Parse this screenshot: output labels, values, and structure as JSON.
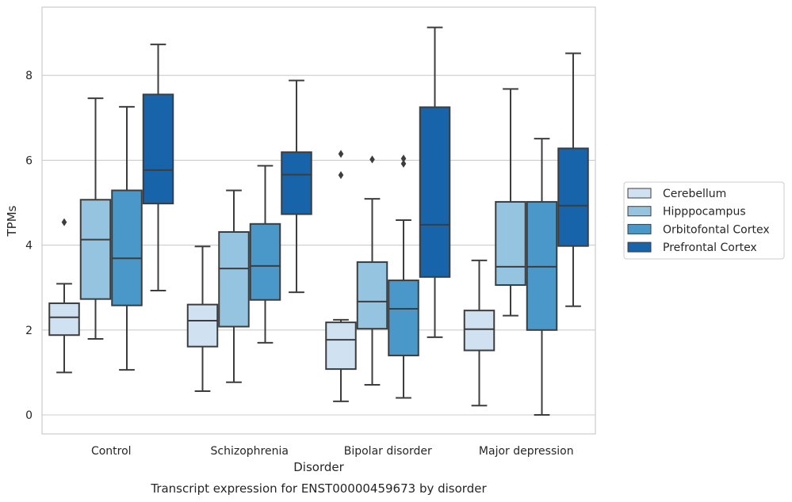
{
  "chart_data": {
    "type": "box",
    "title": "",
    "caption": "Transcript expression for ENST00000459673 by disorder",
    "xlabel": "Disorder",
    "ylabel": "TPMs",
    "ylim": [
      -0.4,
      9.6
    ],
    "yticks": [
      0,
      2,
      4,
      6,
      8
    ],
    "grid": "horizontal",
    "legend_position": "right",
    "categories": [
      "Control",
      "Schizophrenia",
      "Bipolar disorder",
      "Major depression"
    ],
    "series": [
      {
        "name": "Cerebellum",
        "color": "#d0e1f2",
        "boxes": [
          {
            "whislo": 1.0,
            "q1": 1.88,
            "med": 2.3,
            "q3": 2.63,
            "whishi": 3.09,
            "fliers": [
              4.54
            ]
          },
          {
            "whislo": 0.56,
            "q1": 1.61,
            "med": 2.22,
            "q3": 2.6,
            "whishi": 3.97,
            "fliers": []
          },
          {
            "whislo": 0.32,
            "q1": 1.08,
            "med": 1.77,
            "q3": 2.18,
            "whishi": 2.24,
            "fliers": [
              5.65,
              6.15
            ]
          },
          {
            "whislo": 0.22,
            "q1": 1.52,
            "med": 2.02,
            "q3": 2.46,
            "whishi": 3.64,
            "fliers": []
          }
        ]
      },
      {
        "name": "Hipppocampus",
        "color": "#94c4df",
        "boxes": [
          {
            "whislo": 1.79,
            "q1": 2.73,
            "med": 4.13,
            "q3": 5.07,
            "whishi": 7.46,
            "fliers": []
          },
          {
            "whislo": 0.77,
            "q1": 2.08,
            "med": 3.45,
            "q3": 4.31,
            "whishi": 5.29,
            "fliers": []
          },
          {
            "whislo": 0.71,
            "q1": 2.03,
            "med": 2.67,
            "q3": 3.6,
            "whishi": 5.09,
            "fliers": [
              6.02
            ]
          },
          {
            "whislo": 2.34,
            "q1": 3.06,
            "med": 3.49,
            "q3": 5.02,
            "whishi": 7.68,
            "fliers": []
          }
        ]
      },
      {
        "name": "Orbitofontal Cortex",
        "color": "#4a98c9",
        "boxes": [
          {
            "whislo": 1.06,
            "q1": 2.58,
            "med": 3.69,
            "q3": 5.29,
            "whishi": 7.26,
            "fliers": []
          },
          {
            "whislo": 1.7,
            "q1": 2.71,
            "med": 3.51,
            "q3": 4.5,
            "whishi": 5.87,
            "fliers": []
          },
          {
            "whislo": 0.4,
            "q1": 1.4,
            "med": 2.5,
            "q3": 3.17,
            "whishi": 4.59,
            "fliers": [
              5.92,
              6.04
            ]
          },
          {
            "whislo": 0.0,
            "q1": 2.0,
            "med": 3.49,
            "q3": 5.02,
            "whishi": 6.51,
            "fliers": []
          }
        ]
      },
      {
        "name": "Prefrontal Cortex",
        "color": "#1764ab",
        "boxes": [
          {
            "whislo": 2.93,
            "q1": 4.98,
            "med": 5.77,
            "q3": 7.55,
            "whishi": 8.73,
            "fliers": []
          },
          {
            "whislo": 2.89,
            "q1": 4.73,
            "med": 5.66,
            "q3": 6.19,
            "whishi": 7.88,
            "fliers": []
          },
          {
            "whislo": 1.83,
            "q1": 3.25,
            "med": 4.48,
            "q3": 7.25,
            "whishi": 9.13,
            "fliers": []
          },
          {
            "whislo": 2.56,
            "q1": 3.98,
            "med": 4.93,
            "q3": 6.28,
            "whishi": 8.52,
            "fliers": []
          }
        ]
      }
    ]
  }
}
